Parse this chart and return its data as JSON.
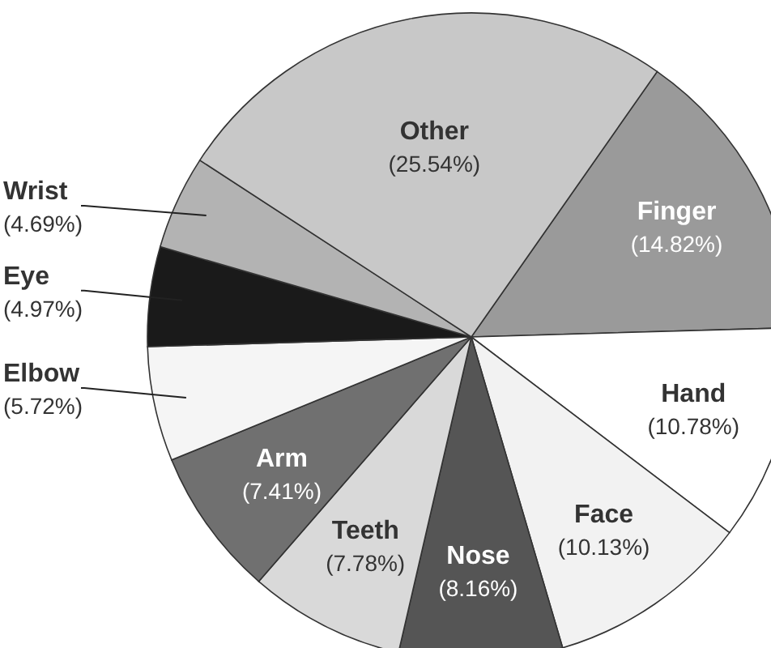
{
  "chart_data": {
    "type": "pie",
    "categories": [
      "Finger",
      "Hand",
      "Face",
      "Nose",
      "Teeth",
      "Arm",
      "Elbow",
      "Eye",
      "Wrist",
      "Other"
    ],
    "values": [
      14.82,
      10.78,
      10.13,
      8.16,
      7.78,
      7.41,
      5.72,
      4.97,
      4.69,
      25.54
    ],
    "value_labels": [
      "(14.82%)",
      "(10.78%)",
      "(10.13%)",
      "(8.16%)",
      "(7.78%)",
      "(7.41%)",
      "(5.72%)",
      "(4.97%)",
      "(4.69%)",
      "(25.54%)"
    ],
    "colors": [
      "#9a9a9a",
      "#ffffff",
      "#f2f2f2",
      "#555555",
      "#d9d9d9",
      "#707070",
      "#f5f5f5",
      "#1a1a1a",
      "#b3b3b3",
      "#c8c8c8"
    ]
  }
}
